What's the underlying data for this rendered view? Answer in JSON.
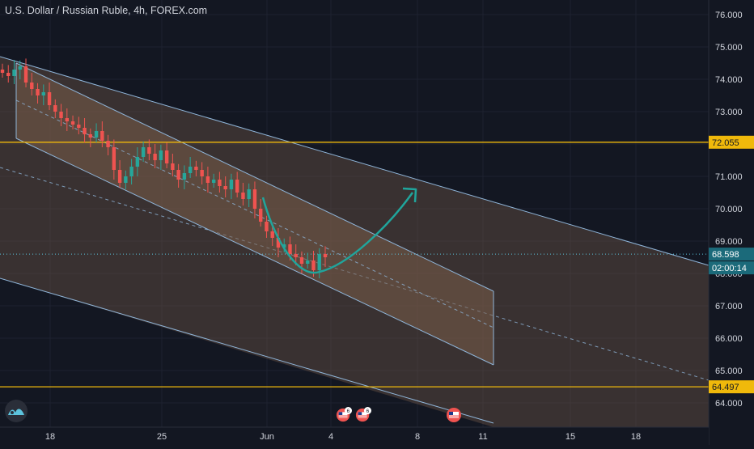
{
  "header": {
    "title": "U.S. Dollar / Russian Ruble, 4h, FOREX.com"
  },
  "colors": {
    "background": "#131722",
    "grid": "#1e2230",
    "axis_text": "#d1d4dc",
    "candle_up": "#26a69a",
    "candle_down": "#ef5350",
    "channel_fill": "#7a5d49",
    "channel_line": "#8fb5d9",
    "horizontal_level": "#f0b90b",
    "price_line": "#5cc3dd",
    "arrow": "#20a59c"
  },
  "chart_data": {
    "type": "candlestick",
    "symbol": "USDRUB",
    "interval": "4h",
    "y_ticks": [
      "76.000",
      "75.000",
      "74.000",
      "73.000",
      "72.000",
      "71.000",
      "70.000",
      "69.000",
      "68.000",
      "67.000",
      "66.000",
      "65.000",
      "64.000"
    ],
    "x_ticks": [
      "18",
      "25",
      "Jun",
      "4",
      "8",
      "11",
      "15",
      "18"
    ],
    "price_labels": {
      "upper_level": "72.055",
      "current_price": "68.598",
      "countdown": "02:00:14",
      "lower_level": "64.497"
    },
    "horizontal_levels": [
      72.055,
      64.497
    ],
    "current_price": 68.598,
    "ohlc_close_path": [
      74.2,
      74.1,
      74.3,
      74.4,
      73.9,
      73.7,
      73.5,
      73.6,
      73.2,
      73.0,
      72.8,
      72.7,
      72.6,
      72.5,
      72.3,
      72.2,
      72.4,
      72.1,
      71.9,
      71.2,
      70.8,
      71.0,
      71.3,
      71.6,
      71.9,
      71.7,
      71.5,
      71.8,
      71.4,
      71.2,
      70.9,
      71.1,
      71.3,
      71.2,
      71.0,
      70.8,
      70.9,
      70.7,
      70.6,
      70.9,
      70.5,
      70.3,
      70.6,
      70.0,
      69.6,
      69.3,
      69.1,
      68.8,
      68.9,
      68.6,
      68.5,
      68.3,
      68.4,
      68.1,
      68.6,
      68.5
    ],
    "annotations": {
      "inner_channel": "descending channel",
      "outer_channel": "descending channel",
      "projection": "curved arrow up"
    },
    "event_badges": [
      "6",
      "6"
    ]
  }
}
